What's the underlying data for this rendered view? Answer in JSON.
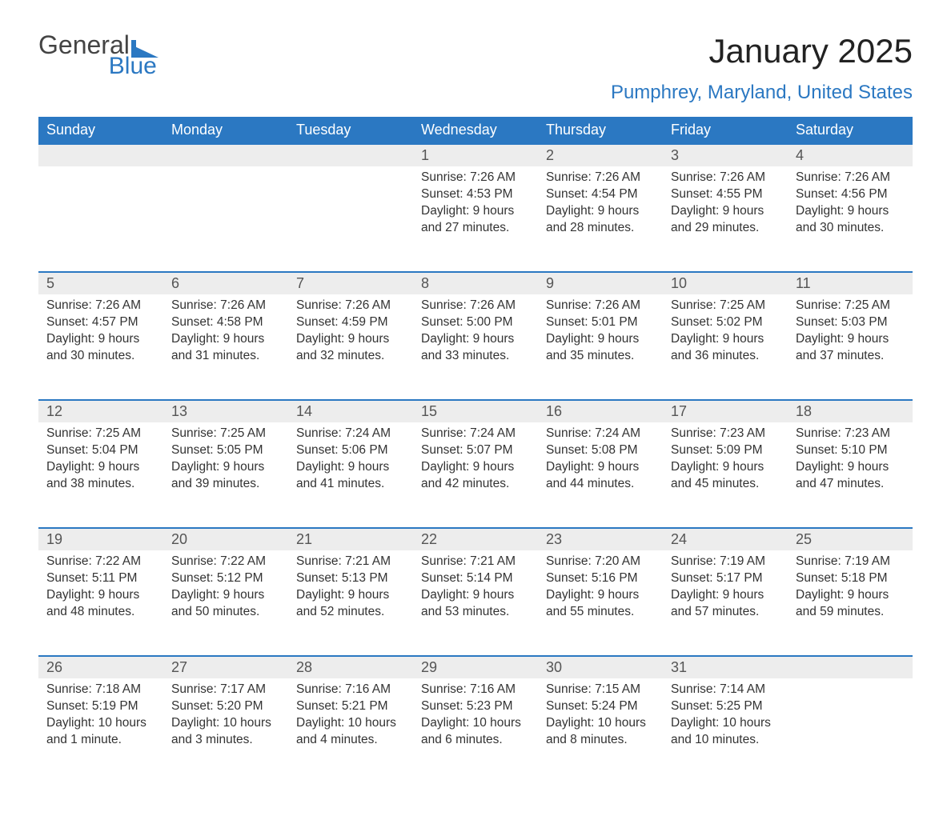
{
  "logo": {
    "word1": "General",
    "word2": "Blue"
  },
  "title": "January 2025",
  "subtitle": "Pumphrey, Maryland, United States",
  "colors": {
    "header_bg": "#2b78c2",
    "header_text": "#ffffff",
    "daynum_bg": "#ededed",
    "daynum_text": "#555555",
    "row_border": "#2b78c2",
    "body_text": "#333333",
    "accent": "#2b78c2",
    "page_bg": "#ffffff"
  },
  "typography": {
    "title_fontsize": 42,
    "subtitle_fontsize": 24,
    "header_fontsize": 18,
    "daynum_fontsize": 18,
    "cell_fontsize": 15.5
  },
  "layout": {
    "columns": 7,
    "rows": 5,
    "leading_blanks": 3,
    "trailing_blanks": 1
  },
  "weekdays": [
    "Sunday",
    "Monday",
    "Tuesday",
    "Wednesday",
    "Thursday",
    "Friday",
    "Saturday"
  ],
  "labels": {
    "sunrise": "Sunrise:",
    "sunset": "Sunset:",
    "daylight": "Daylight:"
  },
  "days": [
    {
      "n": "1",
      "sunrise": "7:26 AM",
      "sunset": "4:53 PM",
      "daylight": "9 hours and 27 minutes."
    },
    {
      "n": "2",
      "sunrise": "7:26 AM",
      "sunset": "4:54 PM",
      "daylight": "9 hours and 28 minutes."
    },
    {
      "n": "3",
      "sunrise": "7:26 AM",
      "sunset": "4:55 PM",
      "daylight": "9 hours and 29 minutes."
    },
    {
      "n": "4",
      "sunrise": "7:26 AM",
      "sunset": "4:56 PM",
      "daylight": "9 hours and 30 minutes."
    },
    {
      "n": "5",
      "sunrise": "7:26 AM",
      "sunset": "4:57 PM",
      "daylight": "9 hours and 30 minutes."
    },
    {
      "n": "6",
      "sunrise": "7:26 AM",
      "sunset": "4:58 PM",
      "daylight": "9 hours and 31 minutes."
    },
    {
      "n": "7",
      "sunrise": "7:26 AM",
      "sunset": "4:59 PM",
      "daylight": "9 hours and 32 minutes."
    },
    {
      "n": "8",
      "sunrise": "7:26 AM",
      "sunset": "5:00 PM",
      "daylight": "9 hours and 33 minutes."
    },
    {
      "n": "9",
      "sunrise": "7:26 AM",
      "sunset": "5:01 PM",
      "daylight": "9 hours and 35 minutes."
    },
    {
      "n": "10",
      "sunrise": "7:25 AM",
      "sunset": "5:02 PM",
      "daylight": "9 hours and 36 minutes."
    },
    {
      "n": "11",
      "sunrise": "7:25 AM",
      "sunset": "5:03 PM",
      "daylight": "9 hours and 37 minutes."
    },
    {
      "n": "12",
      "sunrise": "7:25 AM",
      "sunset": "5:04 PM",
      "daylight": "9 hours and 38 minutes."
    },
    {
      "n": "13",
      "sunrise": "7:25 AM",
      "sunset": "5:05 PM",
      "daylight": "9 hours and 39 minutes."
    },
    {
      "n": "14",
      "sunrise": "7:24 AM",
      "sunset": "5:06 PM",
      "daylight": "9 hours and 41 minutes."
    },
    {
      "n": "15",
      "sunrise": "7:24 AM",
      "sunset": "5:07 PM",
      "daylight": "9 hours and 42 minutes."
    },
    {
      "n": "16",
      "sunrise": "7:24 AM",
      "sunset": "5:08 PM",
      "daylight": "9 hours and 44 minutes."
    },
    {
      "n": "17",
      "sunrise": "7:23 AM",
      "sunset": "5:09 PM",
      "daylight": "9 hours and 45 minutes."
    },
    {
      "n": "18",
      "sunrise": "7:23 AM",
      "sunset": "5:10 PM",
      "daylight": "9 hours and 47 minutes."
    },
    {
      "n": "19",
      "sunrise": "7:22 AM",
      "sunset": "5:11 PM",
      "daylight": "9 hours and 48 minutes."
    },
    {
      "n": "20",
      "sunrise": "7:22 AM",
      "sunset": "5:12 PM",
      "daylight": "9 hours and 50 minutes."
    },
    {
      "n": "21",
      "sunrise": "7:21 AM",
      "sunset": "5:13 PM",
      "daylight": "9 hours and 52 minutes."
    },
    {
      "n": "22",
      "sunrise": "7:21 AM",
      "sunset": "5:14 PM",
      "daylight": "9 hours and 53 minutes."
    },
    {
      "n": "23",
      "sunrise": "7:20 AM",
      "sunset": "5:16 PM",
      "daylight": "9 hours and 55 minutes."
    },
    {
      "n": "24",
      "sunrise": "7:19 AM",
      "sunset": "5:17 PM",
      "daylight": "9 hours and 57 minutes."
    },
    {
      "n": "25",
      "sunrise": "7:19 AM",
      "sunset": "5:18 PM",
      "daylight": "9 hours and 59 minutes."
    },
    {
      "n": "26",
      "sunrise": "7:18 AM",
      "sunset": "5:19 PM",
      "daylight": "10 hours and 1 minute."
    },
    {
      "n": "27",
      "sunrise": "7:17 AM",
      "sunset": "5:20 PM",
      "daylight": "10 hours and 3 minutes."
    },
    {
      "n": "28",
      "sunrise": "7:16 AM",
      "sunset": "5:21 PM",
      "daylight": "10 hours and 4 minutes."
    },
    {
      "n": "29",
      "sunrise": "7:16 AM",
      "sunset": "5:23 PM",
      "daylight": "10 hours and 6 minutes."
    },
    {
      "n": "30",
      "sunrise": "7:15 AM",
      "sunset": "5:24 PM",
      "daylight": "10 hours and 8 minutes."
    },
    {
      "n": "31",
      "sunrise": "7:14 AM",
      "sunset": "5:25 PM",
      "daylight": "10 hours and 10 minutes."
    }
  ]
}
